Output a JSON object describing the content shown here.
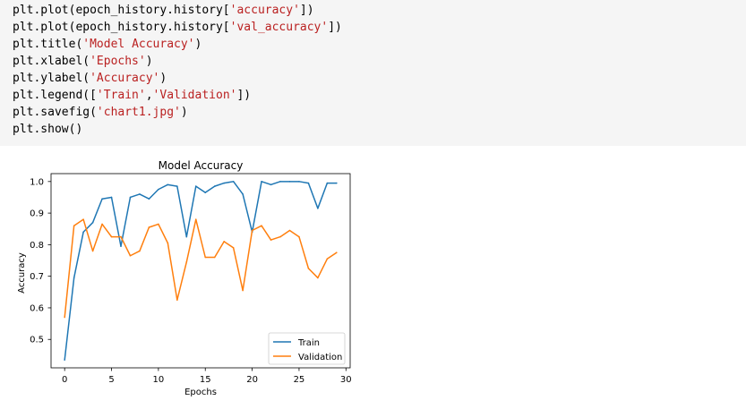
{
  "code_cell": {
    "lines": [
      [
        {
          "t": "plt.plot(epoch_history.history["
        },
        {
          "t": "'accuracy'",
          "s": true
        },
        {
          "t": "])"
        }
      ],
      [
        {
          "t": "plt.plot(epoch_history.history["
        },
        {
          "t": "'val_accuracy'",
          "s": true
        },
        {
          "t": "])"
        }
      ],
      [
        {
          "t": "plt.title("
        },
        {
          "t": "'Model Accuracy'",
          "s": true
        },
        {
          "t": ")"
        }
      ],
      [
        {
          "t": "plt.xlabel("
        },
        {
          "t": "'Epochs'",
          "s": true
        },
        {
          "t": ")"
        }
      ],
      [
        {
          "t": "plt.ylabel("
        },
        {
          "t": "'Accuracy'",
          "s": true
        },
        {
          "t": ")"
        }
      ],
      [
        {
          "t": "plt.legend(["
        },
        {
          "t": "'Train'",
          "s": true
        },
        {
          "t": ","
        },
        {
          "t": "'Validation'",
          "s": true
        },
        {
          "t": "])"
        }
      ],
      [
        {
          "t": "plt.savefig("
        },
        {
          "t": "'chart1.jpg'",
          "s": true
        },
        {
          "t": ")"
        }
      ],
      [
        {
          "t": "plt.show()"
        }
      ]
    ]
  },
  "chart_data": {
    "type": "line",
    "title": "Model Accuracy",
    "xlabel": "Epochs",
    "ylabel": "Accuracy",
    "xlim": [
      -1.45,
      30.45
    ],
    "ylim": [
      0.41,
      1.025
    ],
    "xticks": [
      0,
      5,
      10,
      15,
      20,
      25,
      30
    ],
    "yticks": [
      0.5,
      0.6,
      0.7,
      0.8,
      0.9,
      1.0
    ],
    "ytick_labels": [
      "0.5",
      "0.6",
      "0.7",
      "0.8",
      "0.9",
      "1.0"
    ],
    "grid": false,
    "legend_position": "lower right",
    "x": [
      0,
      1,
      2,
      3,
      4,
      5,
      6,
      7,
      8,
      9,
      10,
      11,
      12,
      13,
      14,
      15,
      16,
      17,
      18,
      19,
      20,
      21,
      22,
      23,
      24,
      25,
      26,
      27,
      28,
      29
    ],
    "series": [
      {
        "name": "Train",
        "color": "#1f77b4",
        "values": [
          0.435,
          0.695,
          0.84,
          0.87,
          0.945,
          0.95,
          0.795,
          0.95,
          0.96,
          0.945,
          0.975,
          0.99,
          0.985,
          0.825,
          0.985,
          0.965,
          0.985,
          0.995,
          1.0,
          0.96,
          0.84,
          1.0,
          0.99,
          1.0,
          1.0,
          1.0,
          0.995,
          0.915,
          0.995,
          0.995
        ]
      },
      {
        "name": "Validation",
        "color": "#ff7f0e",
        "values": [
          0.57,
          0.86,
          0.88,
          0.78,
          0.865,
          0.825,
          0.825,
          0.765,
          0.78,
          0.855,
          0.865,
          0.805,
          0.625,
          0.745,
          0.88,
          0.76,
          0.76,
          0.81,
          0.79,
          0.655,
          0.845,
          0.86,
          0.815,
          0.825,
          0.845,
          0.825,
          0.725,
          0.695,
          0.755,
          0.775
        ]
      }
    ]
  }
}
